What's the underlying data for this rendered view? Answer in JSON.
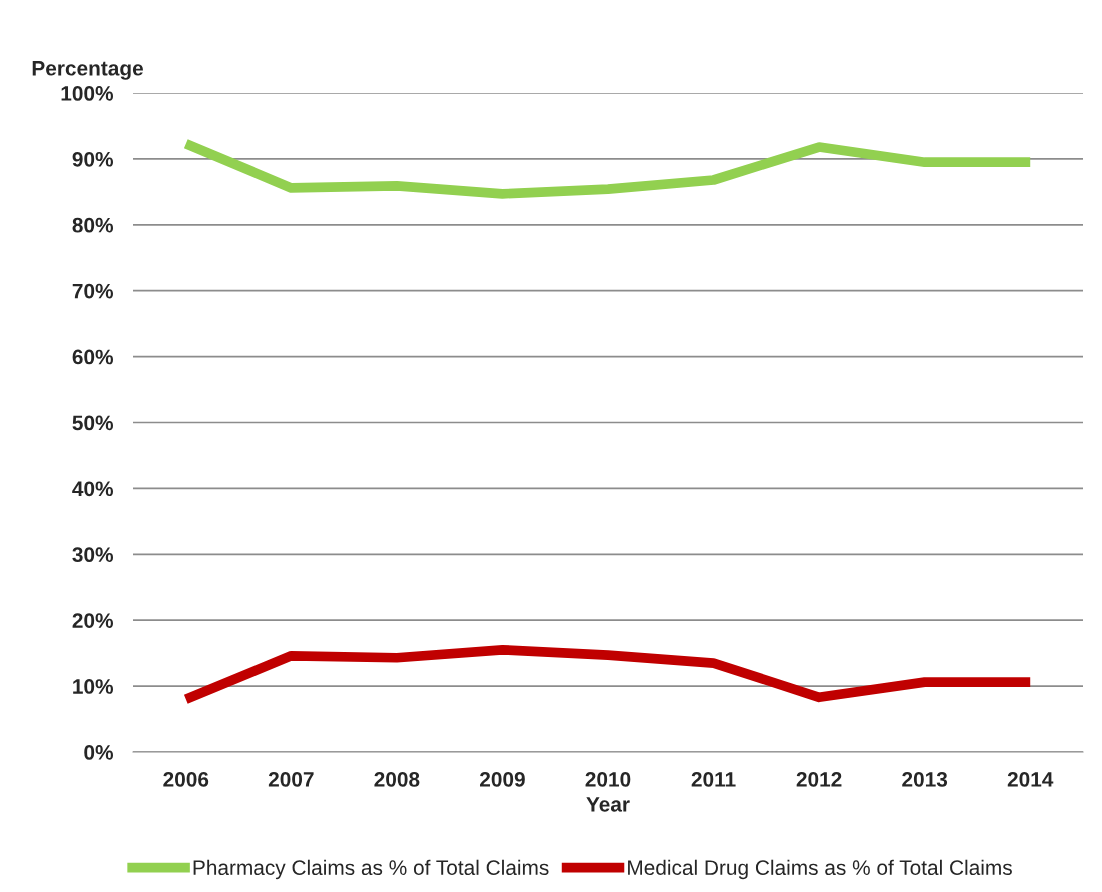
{
  "chart_data": {
    "type": "line",
    "xlabel": "Year",
    "ylabel": "Percentage",
    "categories": [
      "2006",
      "2007",
      "2008",
      "2009",
      "2010",
      "2011",
      "2012",
      "2013",
      "2014"
    ],
    "series": [
      {
        "name": "Pharmacy Claims as % of Total Claims",
        "color": "#92d050",
        "values": [
          92.3,
          85.6,
          85.9,
          84.7,
          85.4,
          86.8,
          91.8,
          89.5,
          89.5
        ]
      },
      {
        "name": "Medical Drug Claims as % of Total Claims",
        "color": "#c00000",
        "values": [
          8.0,
          14.6,
          14.3,
          15.5,
          14.7,
          13.5,
          8.3,
          10.6,
          10.6
        ]
      }
    ],
    "ylim": [
      0,
      100
    ],
    "yticks": [
      {
        "value": 0,
        "label": "0%"
      },
      {
        "value": 10,
        "label": "10%"
      },
      {
        "value": 20,
        "label": "20%"
      },
      {
        "value": 30,
        "label": "30%"
      },
      {
        "value": 40,
        "label": "40%"
      },
      {
        "value": 50,
        "label": "50%"
      },
      {
        "value": 60,
        "label": "60%"
      },
      {
        "value": 70,
        "label": "70%"
      },
      {
        "value": 80,
        "label": "80%"
      },
      {
        "value": 90,
        "label": "90%"
      },
      {
        "value": 100,
        "label": "100%"
      }
    ],
    "grid": "y",
    "legend": "bottom",
    "line_style": "solid"
  }
}
